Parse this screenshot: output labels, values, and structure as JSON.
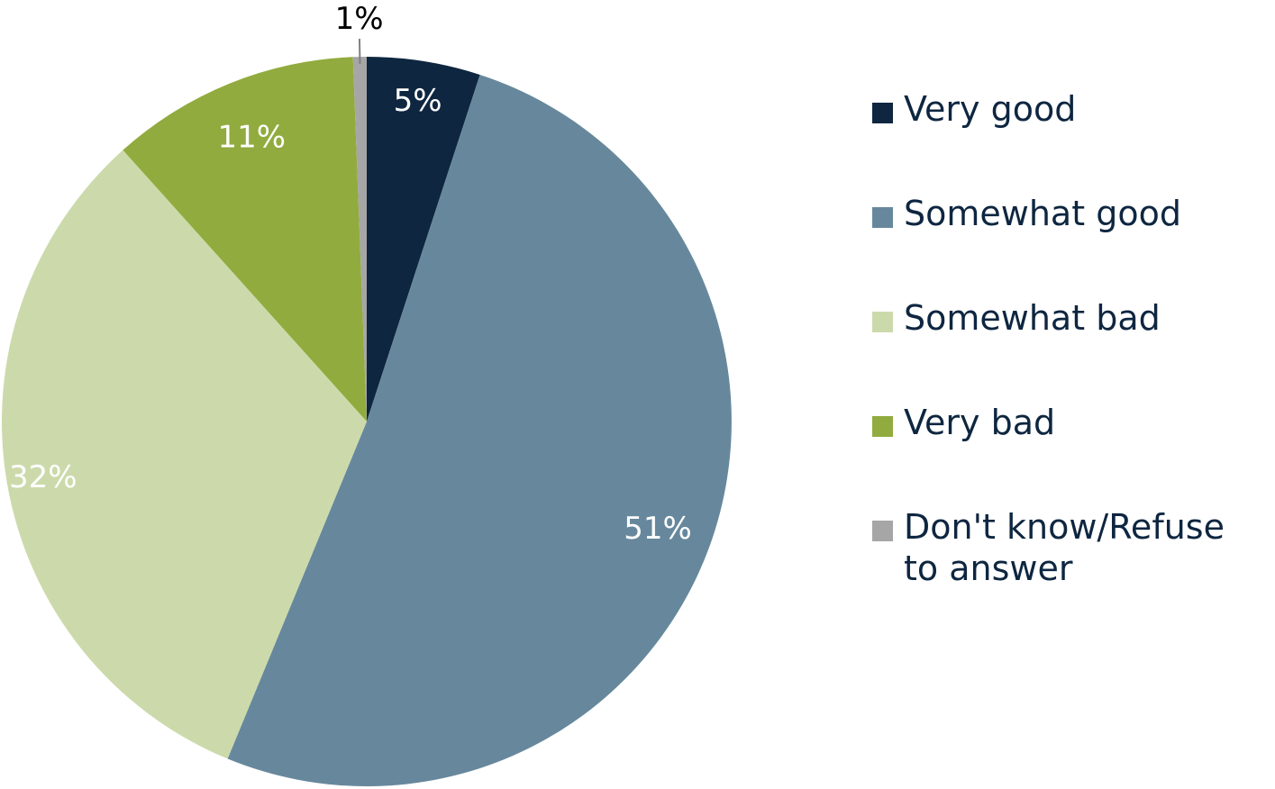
{
  "chart_data": {
    "type": "pie",
    "title": "",
    "slices": [
      {
        "label": "Very good",
        "value": 5,
        "display": "5%",
        "color": "#0e2640",
        "label_position": "inside"
      },
      {
        "label": "Somewhat good",
        "value": 51,
        "display": "51%",
        "color": "#67889c",
        "label_position": "inside"
      },
      {
        "label": "Somewhat bad",
        "value": 32,
        "display": "32%",
        "color": "#ccdaab",
        "label_position": "inside"
      },
      {
        "label": "Very bad",
        "value": 11,
        "display": "11%",
        "color": "#91ab3e",
        "label_position": "inside"
      },
      {
        "label": "Don't know/Refuse to answer",
        "value": 0.6,
        "display": "1%",
        "color": "#a6a6a6",
        "label_position": "outside"
      }
    ],
    "start_angle": "12 o'clock",
    "direction": "clockwise",
    "legend_position": "right"
  },
  "legend": {
    "items": [
      {
        "label": "Very good",
        "color": "#0e2640"
      },
      {
        "label": "Somewhat good",
        "color": "#67889c"
      },
      {
        "label": "Somewhat bad",
        "color": "#ccdaab"
      },
      {
        "label": "Very bad",
        "color": "#91ab3e"
      },
      {
        "label": "Don't know/Refuse to answer",
        "color": "#a6a6a6"
      }
    ]
  }
}
